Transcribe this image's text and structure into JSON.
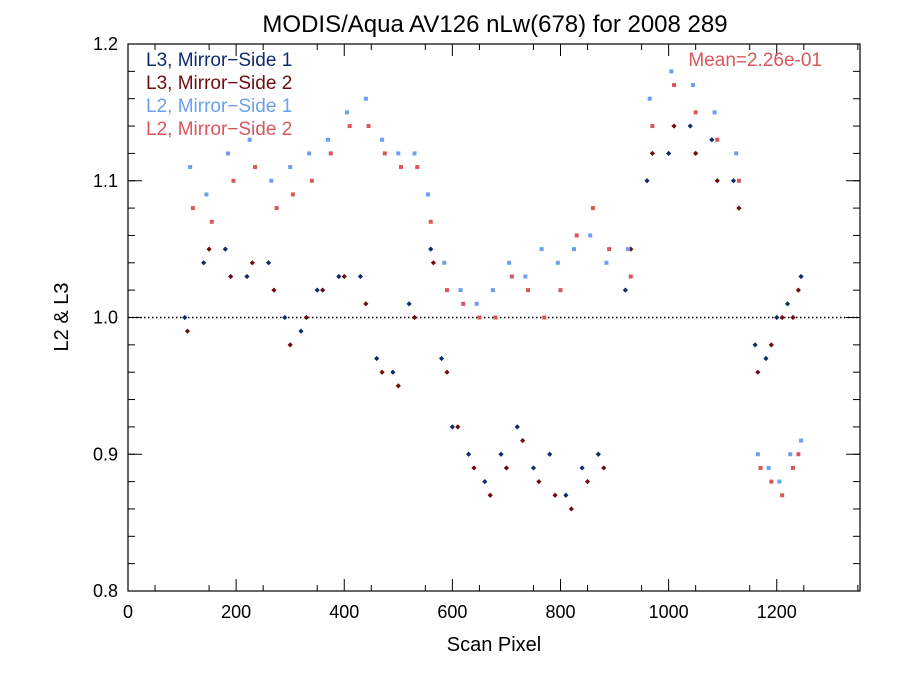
{
  "chart_data": {
    "type": "scatter",
    "title": "MODIS/Aqua AV126 nLw(678) for 2008 289",
    "xlabel": "Scan Pixel",
    "ylabel": "L2 & L3",
    "xlim": [
      0,
      1354
    ],
    "ylim": [
      0.8,
      1.2
    ],
    "xticks": [
      "0",
      "200",
      "400",
      "600",
      "800",
      "1000",
      "1200"
    ],
    "xtick_values": [
      0,
      200,
      400,
      600,
      800,
      1000,
      1200
    ],
    "yticks": [
      "0.8",
      "0.9",
      "1.0",
      "1.1",
      "1.2"
    ],
    "ytick_values": [
      0.8,
      0.9,
      1.0,
      1.1,
      1.2
    ],
    "reference_line": 1.0,
    "annotation": "Mean=2.26e-01",
    "annotation_color": "#d9575c",
    "grid": false,
    "legend_position": "top-left",
    "series": [
      {
        "name": "L3, Mirror−Side 1",
        "color": "#0d2c6b",
        "marker": "diamond",
        "x": [
          105,
          140,
          180,
          220,
          260,
          290,
          320,
          350,
          390,
          430,
          460,
          490,
          520,
          560,
          580,
          600,
          630,
          660,
          690,
          720,
          750,
          780,
          810,
          840,
          870,
          920,
          960,
          1000,
          1040,
          1080,
          1120,
          1160,
          1180,
          1200,
          1220,
          1245
        ],
        "y": [
          1.0,
          1.04,
          1.05,
          1.03,
          1.04,
          1.0,
          0.99,
          1.02,
          1.03,
          1.03,
          0.97,
          0.96,
          1.01,
          1.05,
          0.97,
          0.92,
          0.9,
          0.88,
          0.9,
          0.92,
          0.89,
          0.9,
          0.87,
          0.89,
          0.9,
          1.02,
          1.1,
          1.12,
          1.14,
          1.13,
          1.1,
          0.98,
          0.97,
          1.0,
          1.01,
          1.03
        ]
      },
      {
        "name": "L3, Mirror−Side 2",
        "color": "#6e0c10",
        "marker": "diamond",
        "x": [
          110,
          150,
          190,
          230,
          270,
          300,
          330,
          360,
          400,
          440,
          470,
          500,
          530,
          565,
          590,
          610,
          640,
          670,
          700,
          730,
          760,
          790,
          820,
          850,
          880,
          930,
          970,
          1010,
          1050,
          1090,
          1130,
          1165,
          1190,
          1210,
          1230,
          1240
        ],
        "y": [
          0.99,
          1.05,
          1.03,
          1.04,
          1.02,
          0.98,
          1.0,
          1.02,
          1.03,
          1.01,
          0.96,
          0.95,
          1.0,
          1.04,
          0.96,
          0.92,
          0.89,
          0.87,
          0.89,
          0.91,
          0.88,
          0.87,
          0.86,
          0.88,
          0.89,
          1.05,
          1.12,
          1.14,
          1.12,
          1.1,
          1.08,
          0.96,
          0.98,
          1.0,
          1.0,
          1.02
        ]
      },
      {
        "name": "L2, Mirror−Side 1",
        "color": "#6aa0ee",
        "marker": "square",
        "x": [
          115,
          145,
          185,
          225,
          265,
          300,
          335,
          370,
          405,
          440,
          470,
          500,
          530,
          555,
          585,
          615,
          645,
          675,
          705,
          735,
          765,
          795,
          825,
          855,
          885,
          925,
          965,
          1005,
          1045,
          1085,
          1125,
          1165,
          1185,
          1205,
          1225,
          1245
        ],
        "y": [
          1.11,
          1.09,
          1.12,
          1.13,
          1.1,
          1.11,
          1.12,
          1.13,
          1.15,
          1.16,
          1.13,
          1.12,
          1.12,
          1.09,
          1.04,
          1.02,
          1.01,
          1.02,
          1.04,
          1.03,
          1.05,
          1.04,
          1.05,
          1.06,
          1.04,
          1.05,
          1.16,
          1.18,
          1.17,
          1.15,
          1.12,
          0.9,
          0.89,
          0.88,
          0.9,
          0.91
        ]
      },
      {
        "name": "L2, Mirror−Side 2",
        "color": "#d9575c",
        "marker": "square",
        "x": [
          120,
          155,
          195,
          235,
          275,
          305,
          340,
          375,
          410,
          445,
          475,
          505,
          535,
          560,
          590,
          620,
          650,
          680,
          710,
          740,
          770,
          800,
          830,
          860,
          890,
          930,
          970,
          1010,
          1050,
          1090,
          1130,
          1170,
          1190,
          1210,
          1230,
          1240
        ],
        "y": [
          1.08,
          1.07,
          1.1,
          1.11,
          1.08,
          1.09,
          1.1,
          1.12,
          1.14,
          1.14,
          1.12,
          1.11,
          1.11,
          1.07,
          1.02,
          1.01,
          1.0,
          1.0,
          1.03,
          1.02,
          1.0,
          1.02,
          1.06,
          1.08,
          1.05,
          1.03,
          1.14,
          1.17,
          1.15,
          1.13,
          1.1,
          0.89,
          0.88,
          0.87,
          0.89,
          0.9
        ]
      }
    ]
  }
}
